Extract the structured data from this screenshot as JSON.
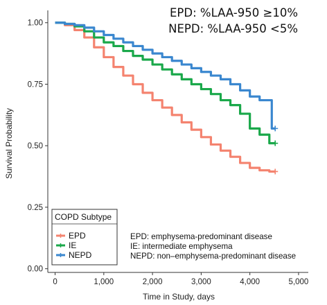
{
  "criteria": {
    "line1": "EPD: %LAA-950 ≥10%",
    "line2": "NEPD: %LAA-950 <5%"
  },
  "definitions": [
    "EPD: emphysema-predominant disease",
    "IE: intermediate emphysema",
    "NEPD: non–emphysema-predominant disease"
  ],
  "colors": {
    "EPD": "#f4836f",
    "IE": "#1aa84a",
    "NEPD": "#3a87cf",
    "axis": "#333333"
  },
  "chart_data": {
    "type": "line",
    "subtype": "kaplan-meier step curves",
    "title": "",
    "xlabel": "Time in Study, days",
    "ylabel": "Survival Probability",
    "xlim": [
      -150,
      5200
    ],
    "ylim": [
      -0.015,
      1.05
    ],
    "x_ticks": [
      0,
      1000,
      2000,
      3000,
      4000,
      5000
    ],
    "x_tick_labels": [
      "0",
      "1,000",
      "2,000",
      "3,000",
      "4,000",
      "5,000"
    ],
    "y_ticks": [
      0.0,
      0.25,
      0.5,
      0.75,
      1.0
    ],
    "y_tick_labels": [
      "0.00",
      "0.25",
      "0.50",
      "0.75",
      "1.00"
    ],
    "grid": false,
    "legend": {
      "title": "COPD Subtype",
      "position": "bottom-left",
      "entries": [
        "EPD",
        "IE",
        "NEPD"
      ]
    },
    "series": [
      {
        "name": "EPD",
        "x": [
          0,
          200,
          400,
          600,
          800,
          1000,
          1200,
          1400,
          1600,
          1800,
          2000,
          2200,
          2400,
          2600,
          2800,
          3000,
          3200,
          3400,
          3600,
          3800,
          4000,
          4200,
          4400,
          4520
        ],
        "y": [
          1.0,
          0.99,
          0.97,
          0.94,
          0.9,
          0.86,
          0.82,
          0.785,
          0.75,
          0.715,
          0.685,
          0.655,
          0.625,
          0.595,
          0.565,
          0.535,
          0.505,
          0.48,
          0.455,
          0.43,
          0.41,
          0.4,
          0.395,
          0.395
        ]
      },
      {
        "name": "IE",
        "x": [
          0,
          200,
          400,
          600,
          800,
          1000,
          1200,
          1400,
          1600,
          1800,
          2000,
          2200,
          2400,
          2600,
          2800,
          3000,
          3200,
          3400,
          3600,
          3800,
          4000,
          4200,
          4400,
          4520
        ],
        "y": [
          1.0,
          0.995,
          0.985,
          0.965,
          0.94,
          0.92,
          0.905,
          0.885,
          0.865,
          0.85,
          0.83,
          0.81,
          0.79,
          0.77,
          0.75,
          0.73,
          0.71,
          0.685,
          0.665,
          0.63,
          0.57,
          0.545,
          0.51,
          0.51
        ]
      },
      {
        "name": "NEPD",
        "x": [
          0,
          200,
          400,
          600,
          800,
          1000,
          1200,
          1400,
          1600,
          1800,
          2000,
          2200,
          2400,
          2600,
          2800,
          3000,
          3200,
          3400,
          3600,
          3800,
          4000,
          4200,
          4400,
          4450,
          4520
        ],
        "y": [
          1.0,
          0.995,
          0.99,
          0.98,
          0.965,
          0.95,
          0.935,
          0.92,
          0.905,
          0.89,
          0.875,
          0.86,
          0.845,
          0.83,
          0.815,
          0.8,
          0.785,
          0.77,
          0.75,
          0.725,
          0.7,
          0.685,
          0.685,
          0.57,
          0.57
        ]
      }
    ]
  }
}
